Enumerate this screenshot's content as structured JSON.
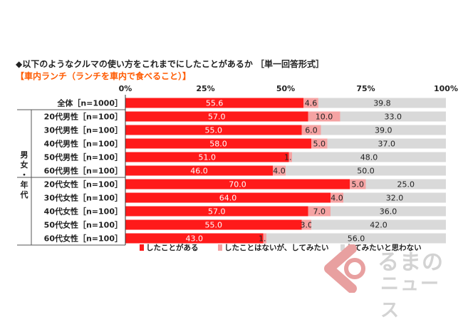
{
  "header": {
    "question": "◆以下のようなクルマの使い方をこれまでにしたことがあるか ［単一回答形式］",
    "subtitle": "【車内ランチ（ランチを車内で食べること）】"
  },
  "chart_data": {
    "type": "bar",
    "stacked": true,
    "orientation": "horizontal",
    "xlim": [
      0,
      100
    ],
    "x_ticks": [
      "0%",
      "25%",
      "50%",
      "75%",
      "100%"
    ],
    "group_label": "男女・年代",
    "categories": [
      "全体［n=1000］",
      "20代男性［n=100］",
      "30代男性［n=100］",
      "40代男性［n=100］",
      "50代男性［n=100］",
      "60代男性［n=100］",
      "20代女性［n=100］",
      "30代女性［n=100］",
      "40代女性［n=100］",
      "50代女性［n=100］",
      "60代女性［n=100］"
    ],
    "series": [
      {
        "name": "したことがある",
        "color": "#ff1a1a",
        "text_color": "#ffffff",
        "values": [
          55.6,
          57.0,
          55.0,
          58.0,
          51.0,
          46.0,
          70.0,
          64.0,
          57.0,
          55.0,
          43.0
        ]
      },
      {
        "name": "したことはないが、してみたい",
        "color": "#f5a3a3",
        "text_color": "#222222",
        "values": [
          4.6,
          10.0,
          6.0,
          5.0,
          1.0,
          4.0,
          5.0,
          4.0,
          7.0,
          3.0,
          1.0
        ]
      },
      {
        "name": "してみたいと思わない",
        "color": "#d9d9d9",
        "text_color": "#222222",
        "values": [
          39.8,
          33.0,
          39.0,
          37.0,
          48.0,
          50.0,
          25.0,
          32.0,
          36.0,
          42.0,
          56.0
        ]
      }
    ]
  },
  "logo": {
    "line1": "るまの",
    "line2": "ニュース"
  }
}
